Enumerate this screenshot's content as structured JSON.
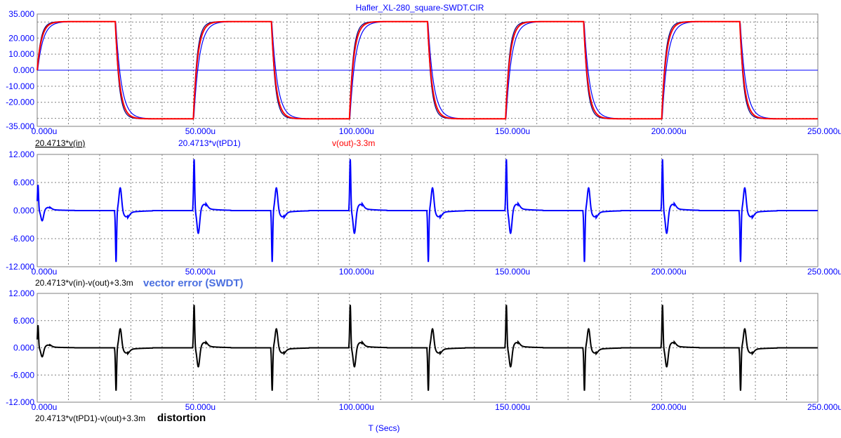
{
  "window": {
    "title": "Hafler_XL-280_square-SWDT.CIR"
  },
  "colors": {
    "axis": "#0000ff",
    "grid": "#7f7f7f",
    "frame": "#7f7f7f",
    "vin": "#000080",
    "vtpd1": "#0000ff",
    "vout": "#ff0000",
    "error": "#0000ff",
    "distortion": "#000000",
    "zero_line": "#0000ff"
  },
  "x_axis": {
    "label": "T (Secs)",
    "range": [
      0,
      250
    ],
    "unit": "u",
    "ticks": [
      0,
      50,
      100,
      150,
      200,
      250
    ],
    "tick_labels": [
      "0.000u",
      "50.000u",
      "100.000u",
      "150.000u",
      "200.000u",
      "250.000u"
    ]
  },
  "chart_data": [
    {
      "type": "line",
      "ylim": [
        -35,
        35
      ],
      "yticks": [
        -35,
        -30,
        -20,
        -10,
        0,
        10,
        20,
        30,
        35
      ],
      "ytick_labels": [
        "-35.000",
        "",
        "-20.000",
        "-10.000",
        "0.000",
        "10.000",
        "20.000",
        "",
        "35.000"
      ],
      "square_wave": {
        "amplitude": 30.3,
        "period": 50,
        "edges": [
          0,
          25,
          50,
          75,
          100,
          125,
          150,
          175,
          200,
          225
        ],
        "end": 250
      },
      "series": [
        {
          "name": "20.4713*v(in)",
          "color_key": "vin",
          "tau": 1.2,
          "overshoot": 0
        },
        {
          "name": "20.4713*v(tPD1)",
          "color_key": "vtpd1",
          "tau": 1.8,
          "overshoot": 0
        },
        {
          "name": "v(out)-3.3m",
          "color_key": "vout",
          "tau": 1.4,
          "overshoot": 0
        }
      ],
      "legend": [
        "20.4713*v(in)",
        "20.4713*v(tPD1)",
        "v(out)-3.3m"
      ]
    },
    {
      "type": "line",
      "ylim": [
        -12,
        12
      ],
      "yticks": [
        -12,
        -6,
        0,
        6,
        12
      ],
      "ytick_labels": [
        "-12.000",
        "-6.000",
        "0.000",
        "6.000",
        "12.000"
      ],
      "series": [
        {
          "name": "20.4713*v(in)-v(out)+3.3m",
          "color_key": "error",
          "pulse_times": [
            0,
            25,
            50,
            75,
            100,
            125,
            150,
            175,
            200,
            225
          ],
          "pulse_peaks": [
            5.5,
            -11,
            11,
            -11,
            11,
            -11,
            11,
            -11,
            11,
            -11
          ]
        }
      ],
      "legend": [
        "20.4713*v(in)-v(out)+3.3m"
      ],
      "annotation": "vector error (SWDT)"
    },
    {
      "type": "line",
      "ylim": [
        -12,
        12
      ],
      "yticks": [
        -12,
        -6,
        0,
        6,
        12
      ],
      "ytick_labels": [
        "-12.000",
        "-6.000",
        "0.000",
        "6.000",
        "12.000"
      ],
      "series": [
        {
          "name": "20.4713*v(tPD1)-v(out)+3.3m",
          "color_key": "distortion",
          "pulse_times": [
            0,
            25,
            50,
            75,
            100,
            125,
            150,
            175,
            200,
            225
          ],
          "pulse_peaks": [
            5,
            -9.5,
            9.5,
            -9.5,
            9.5,
            -9.5,
            9.5,
            -9.5,
            9.5,
            -9.5
          ]
        }
      ],
      "legend": [
        "20.4713*v(tPD1)-v(out)+3.3m"
      ],
      "annotation": "distortion"
    }
  ]
}
